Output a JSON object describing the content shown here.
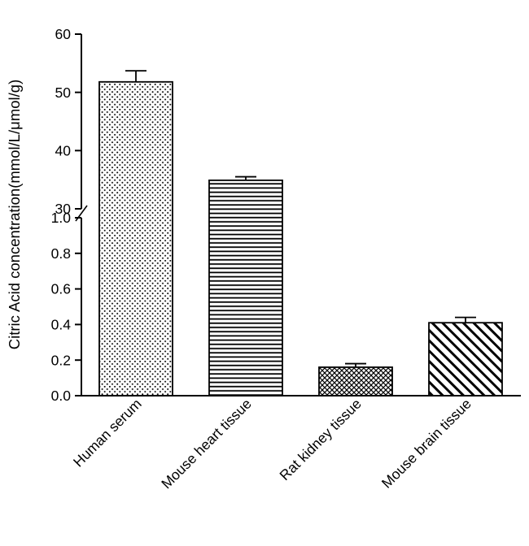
{
  "chart_data": {
    "type": "bar",
    "title": "",
    "xlabel": "",
    "ylabel": "Citric Acid concentration(mmol/L/μmol/g)",
    "categories": [
      "Human serum",
      "Mouse heart tissue",
      "Rat kidney tissue",
      "Mouse brain tissue"
    ],
    "values": [
      51.8,
      34.9,
      0.16,
      0.41
    ],
    "errors": [
      1.9,
      0.6,
      0.02,
      0.03
    ],
    "bar_patterns": [
      "dots",
      "horizontal-lines",
      "crosshatch",
      "diagonal-lines"
    ],
    "bar_outline_color": "#000000",
    "background_color": "#ffffff",
    "grid": false,
    "legend": null,
    "axis_break": {
      "top_panel": {
        "min": 30,
        "max": 60,
        "tick_labels": [
          "30",
          "40",
          "50",
          "60"
        ]
      },
      "bottom_panel": {
        "min": 0.0,
        "max": 1.0,
        "tick_labels": [
          "0.0",
          "0.2",
          "0.4",
          "0.6",
          "0.8",
          "1.0"
        ]
      }
    }
  }
}
